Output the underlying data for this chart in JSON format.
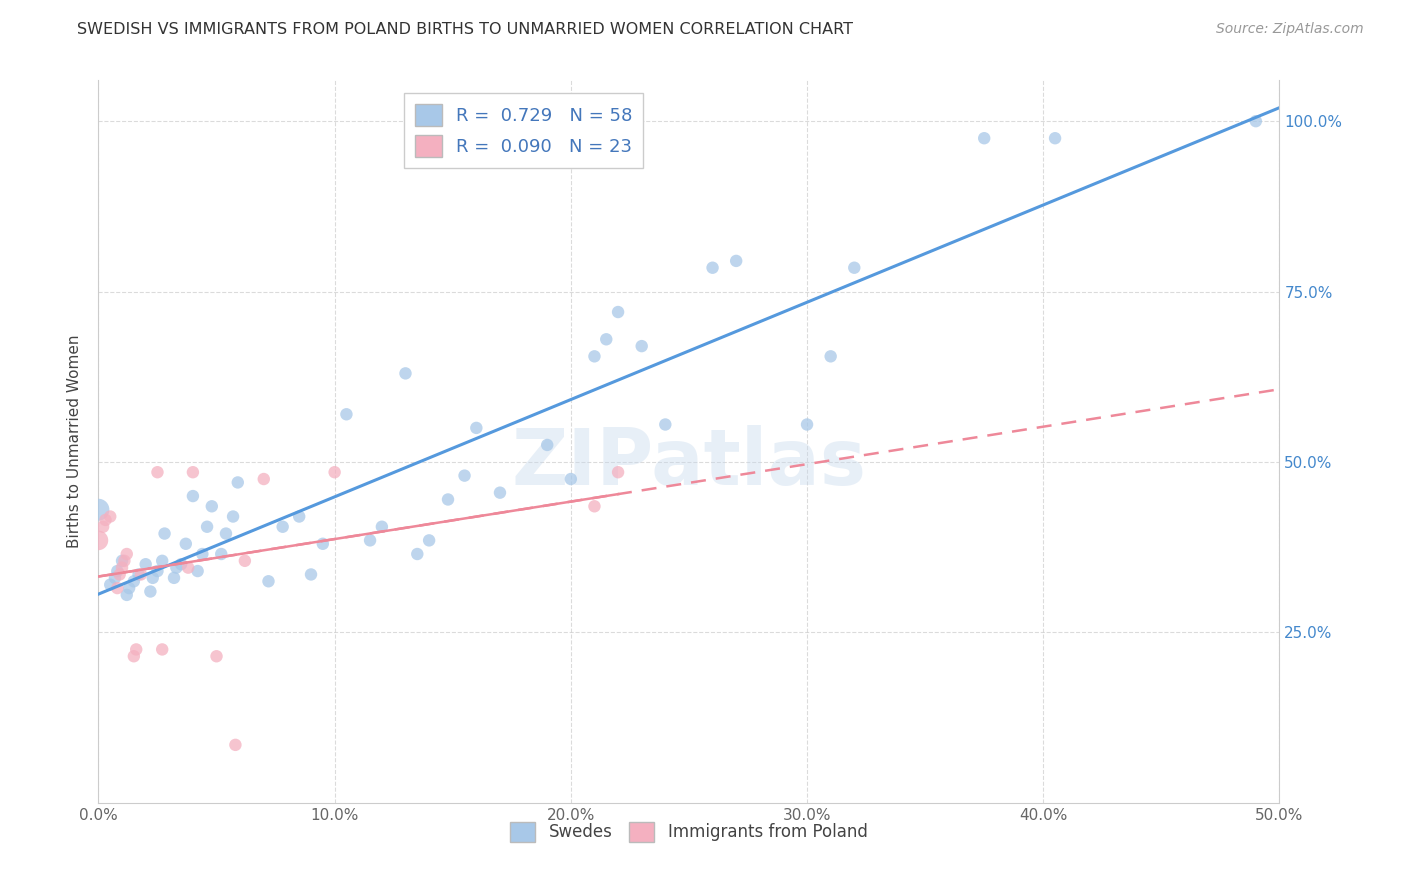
{
  "title": "SWEDISH VS IMMIGRANTS FROM POLAND BIRTHS TO UNMARRIED WOMEN CORRELATION CHART",
  "source": "Source: ZipAtlas.com",
  "ylabel": "Births to Unmarried Women",
  "xlabel_ticks": [
    "0.0%",
    "10.0%",
    "20.0%",
    "30.0%",
    "40.0%",
    "50.0%"
  ],
  "xlabel_vals": [
    0.0,
    0.1,
    0.2,
    0.3,
    0.4,
    0.5
  ],
  "ylabel_ticks": [
    "100.0%",
    "75.0%",
    "50.0%",
    "25.0%"
  ],
  "ylabel_vals": [
    1.0,
    0.75,
    0.5,
    0.25
  ],
  "xlim": [
    0.0,
    0.5
  ],
  "ylim": [
    0.0,
    1.06
  ],
  "watermark": "ZIPatlas",
  "legend_entries": [
    {
      "label": "R =  0.729   N = 58",
      "color": "#aec6e8"
    },
    {
      "label": "R =  0.090   N = 23",
      "color": "#f4b8c1"
    }
  ],
  "legend_bottom": [
    "Swedes",
    "Immigrants from Poland"
  ],
  "blue_color": "#a8c8e8",
  "pink_color": "#f4b0c0",
  "trendline_blue_color": "#5599dd",
  "trendline_pink_color": "#ee8899",
  "blue_points": [
    [
      0.0,
      0.43
    ],
    [
      0.005,
      0.32
    ],
    [
      0.007,
      0.33
    ],
    [
      0.008,
      0.34
    ],
    [
      0.01,
      0.355
    ],
    [
      0.012,
      0.305
    ],
    [
      0.013,
      0.315
    ],
    [
      0.015,
      0.325
    ],
    [
      0.017,
      0.335
    ],
    [
      0.02,
      0.35
    ],
    [
      0.022,
      0.31
    ],
    [
      0.023,
      0.33
    ],
    [
      0.025,
      0.34
    ],
    [
      0.027,
      0.355
    ],
    [
      0.028,
      0.395
    ],
    [
      0.032,
      0.33
    ],
    [
      0.033,
      0.345
    ],
    [
      0.035,
      0.35
    ],
    [
      0.037,
      0.38
    ],
    [
      0.04,
      0.45
    ],
    [
      0.042,
      0.34
    ],
    [
      0.044,
      0.365
    ],
    [
      0.046,
      0.405
    ],
    [
      0.048,
      0.435
    ],
    [
      0.052,
      0.365
    ],
    [
      0.054,
      0.395
    ],
    [
      0.057,
      0.42
    ],
    [
      0.059,
      0.47
    ],
    [
      0.072,
      0.325
    ],
    [
      0.078,
      0.405
    ],
    [
      0.085,
      0.42
    ],
    [
      0.09,
      0.335
    ],
    [
      0.095,
      0.38
    ],
    [
      0.105,
      0.57
    ],
    [
      0.115,
      0.385
    ],
    [
      0.12,
      0.405
    ],
    [
      0.13,
      0.63
    ],
    [
      0.135,
      0.365
    ],
    [
      0.14,
      0.385
    ],
    [
      0.148,
      0.445
    ],
    [
      0.155,
      0.48
    ],
    [
      0.16,
      0.55
    ],
    [
      0.17,
      0.455
    ],
    [
      0.19,
      0.525
    ],
    [
      0.2,
      0.475
    ],
    [
      0.21,
      0.655
    ],
    [
      0.215,
      0.68
    ],
    [
      0.22,
      0.72
    ],
    [
      0.23,
      0.67
    ],
    [
      0.24,
      0.555
    ],
    [
      0.26,
      0.785
    ],
    [
      0.27,
      0.795
    ],
    [
      0.3,
      0.555
    ],
    [
      0.31,
      0.655
    ],
    [
      0.32,
      0.785
    ],
    [
      0.375,
      0.975
    ],
    [
      0.405,
      0.975
    ],
    [
      0.49,
      1.0
    ]
  ],
  "pink_points": [
    [
      0.0,
      0.385
    ],
    [
      0.002,
      0.405
    ],
    [
      0.003,
      0.415
    ],
    [
      0.005,
      0.42
    ],
    [
      0.008,
      0.315
    ],
    [
      0.009,
      0.335
    ],
    [
      0.01,
      0.345
    ],
    [
      0.011,
      0.355
    ],
    [
      0.012,
      0.365
    ],
    [
      0.015,
      0.215
    ],
    [
      0.016,
      0.225
    ],
    [
      0.018,
      0.335
    ],
    [
      0.025,
      0.485
    ],
    [
      0.027,
      0.225
    ],
    [
      0.038,
      0.345
    ],
    [
      0.04,
      0.485
    ],
    [
      0.05,
      0.215
    ],
    [
      0.058,
      0.085
    ],
    [
      0.062,
      0.355
    ],
    [
      0.07,
      0.475
    ],
    [
      0.1,
      0.485
    ],
    [
      0.21,
      0.435
    ],
    [
      0.22,
      0.485
    ]
  ],
  "blue_point_size": 80,
  "blue_large_size": 250,
  "pink_point_size": 80,
  "pink_large_size": 200,
  "background_color": "#ffffff",
  "grid_color": "#cccccc"
}
